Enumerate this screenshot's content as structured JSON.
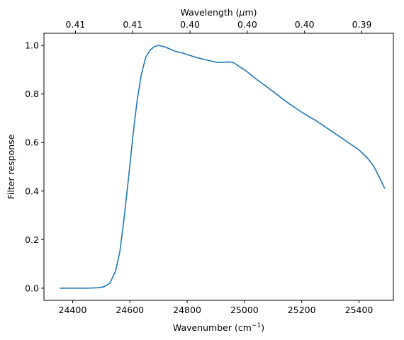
{
  "chart_data": {
    "type": "line",
    "title": "",
    "xlabel": "Wavenumber (cm",
    "xlabel_sup": "−1",
    "xlabel_close": ")",
    "ylabel": "Filter response",
    "top_xlabel_prefix": "Wavelength (",
    "top_xlabel_mu": "μ",
    "top_xlabel_suffix": "m)",
    "xlim": [
      24300,
      25520
    ],
    "ylim": [
      -0.05,
      1.05
    ],
    "xticks": [
      24400,
      24600,
      24800,
      25000,
      25200,
      25400
    ],
    "yticks": [
      0.0,
      0.2,
      0.4,
      0.6,
      0.8,
      1.0
    ],
    "ytick_labels": [
      "0.0",
      "0.2",
      "0.4",
      "0.6",
      "0.8",
      "1.0"
    ],
    "top_ticks": [
      {
        "at": 24410,
        "label": "0.41"
      },
      {
        "at": 24610,
        "label": "0.41"
      },
      {
        "at": 24810,
        "label": "0.40"
      },
      {
        "at": 25010,
        "label": "0.40"
      },
      {
        "at": 25210,
        "label": "0.40"
      },
      {
        "at": 25410,
        "label": "0.39"
      }
    ],
    "grid": false,
    "color": "#1f77b4",
    "series": [
      {
        "x": [
          24355,
          24400,
          24450,
          24490,
          24510,
          24530,
          24550,
          24565,
          24580,
          24595,
          24610,
          24625,
          24640,
          24655,
          24670,
          24685,
          24700,
          24720,
          24740,
          24760,
          24780,
          24800,
          24820,
          24840,
          24860,
          24880,
          24900,
          24920,
          24940,
          24960,
          24980,
          25000,
          25020,
          25040,
          25060,
          25080,
          25100,
          25150,
          25200,
          25250,
          25300,
          25350,
          25400,
          25430,
          25450,
          25470,
          25490
        ],
        "y": [
          0.0,
          0.0,
          0.0,
          0.002,
          0.006,
          0.02,
          0.07,
          0.15,
          0.29,
          0.45,
          0.62,
          0.77,
          0.88,
          0.95,
          0.98,
          0.995,
          1.0,
          0.995,
          0.985,
          0.975,
          0.97,
          0.962,
          0.955,
          0.948,
          0.942,
          0.937,
          0.931,
          0.93,
          0.932,
          0.93,
          0.915,
          0.9,
          0.882,
          0.862,
          0.845,
          0.828,
          0.81,
          0.765,
          0.725,
          0.69,
          0.65,
          0.61,
          0.57,
          0.535,
          0.505,
          0.46,
          0.41
        ]
      }
    ]
  }
}
